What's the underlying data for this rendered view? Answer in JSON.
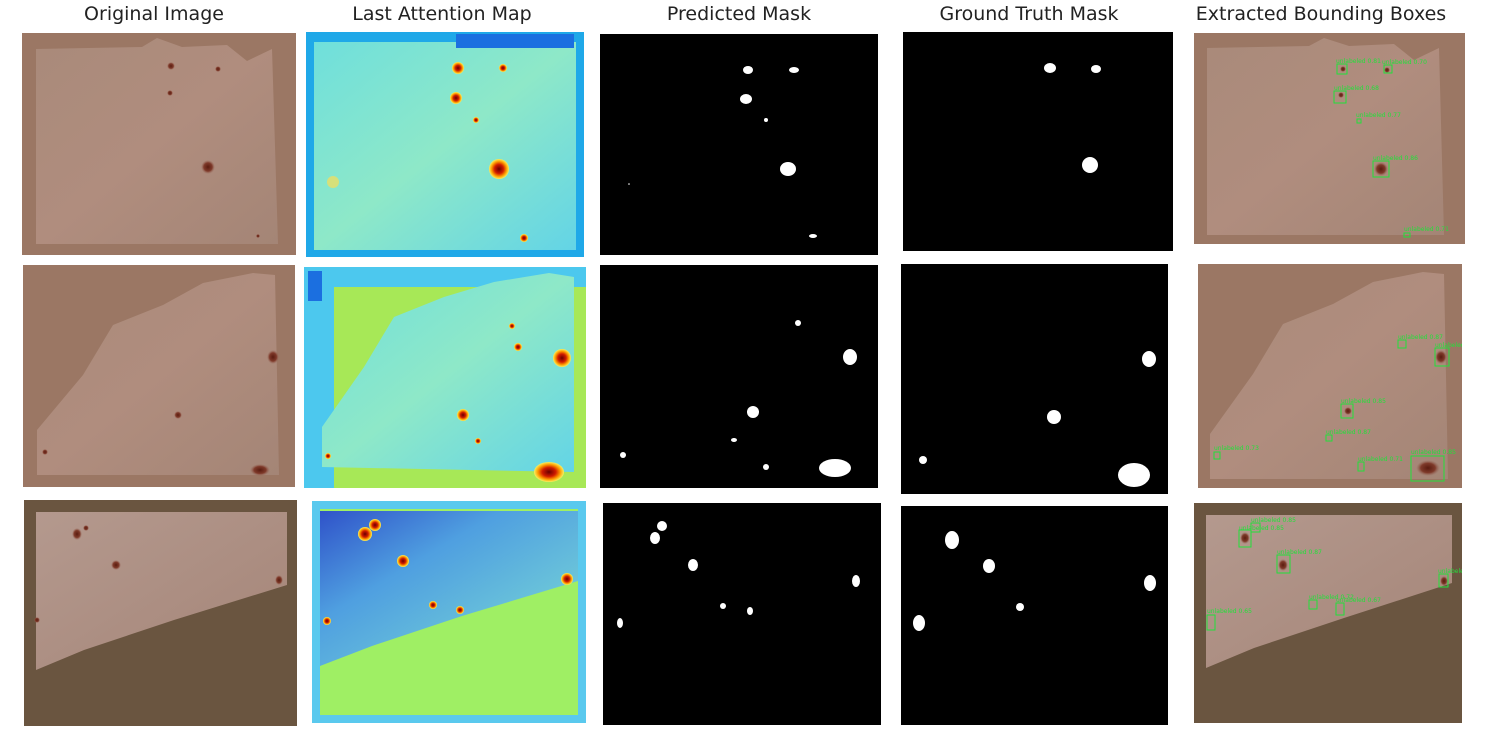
{
  "columns": {
    "original": "Original Image",
    "attention": "Last Attention Map",
    "predicted": "Predicted Mask",
    "ground_truth": "Ground Truth Mask",
    "boxes": "Extracted Bounding Boxes"
  },
  "box_labels": {
    "row1": [
      "unlabeled 0.81",
      "unlabeled 0.70",
      "unlabeled 0.68",
      "unlabeled 0.77",
      "unlabeled 0.86",
      "unlabeled 0.71"
    ],
    "row2": [
      "unlabeled 0.87",
      "unlabeled",
      "unlabeled 0.85",
      "unlabeled 0.87",
      "unlabeled 0.73",
      "unlabeled 0.71",
      "unlabeled 0.85"
    ],
    "row3": [
      "unlabeled 0.85",
      "unlabeled 0.85",
      "unlabeled 0.87",
      "unlabeled",
      "unlabeled 0.72",
      "unlabeled 0.67",
      "unlabeled 0.65"
    ]
  }
}
